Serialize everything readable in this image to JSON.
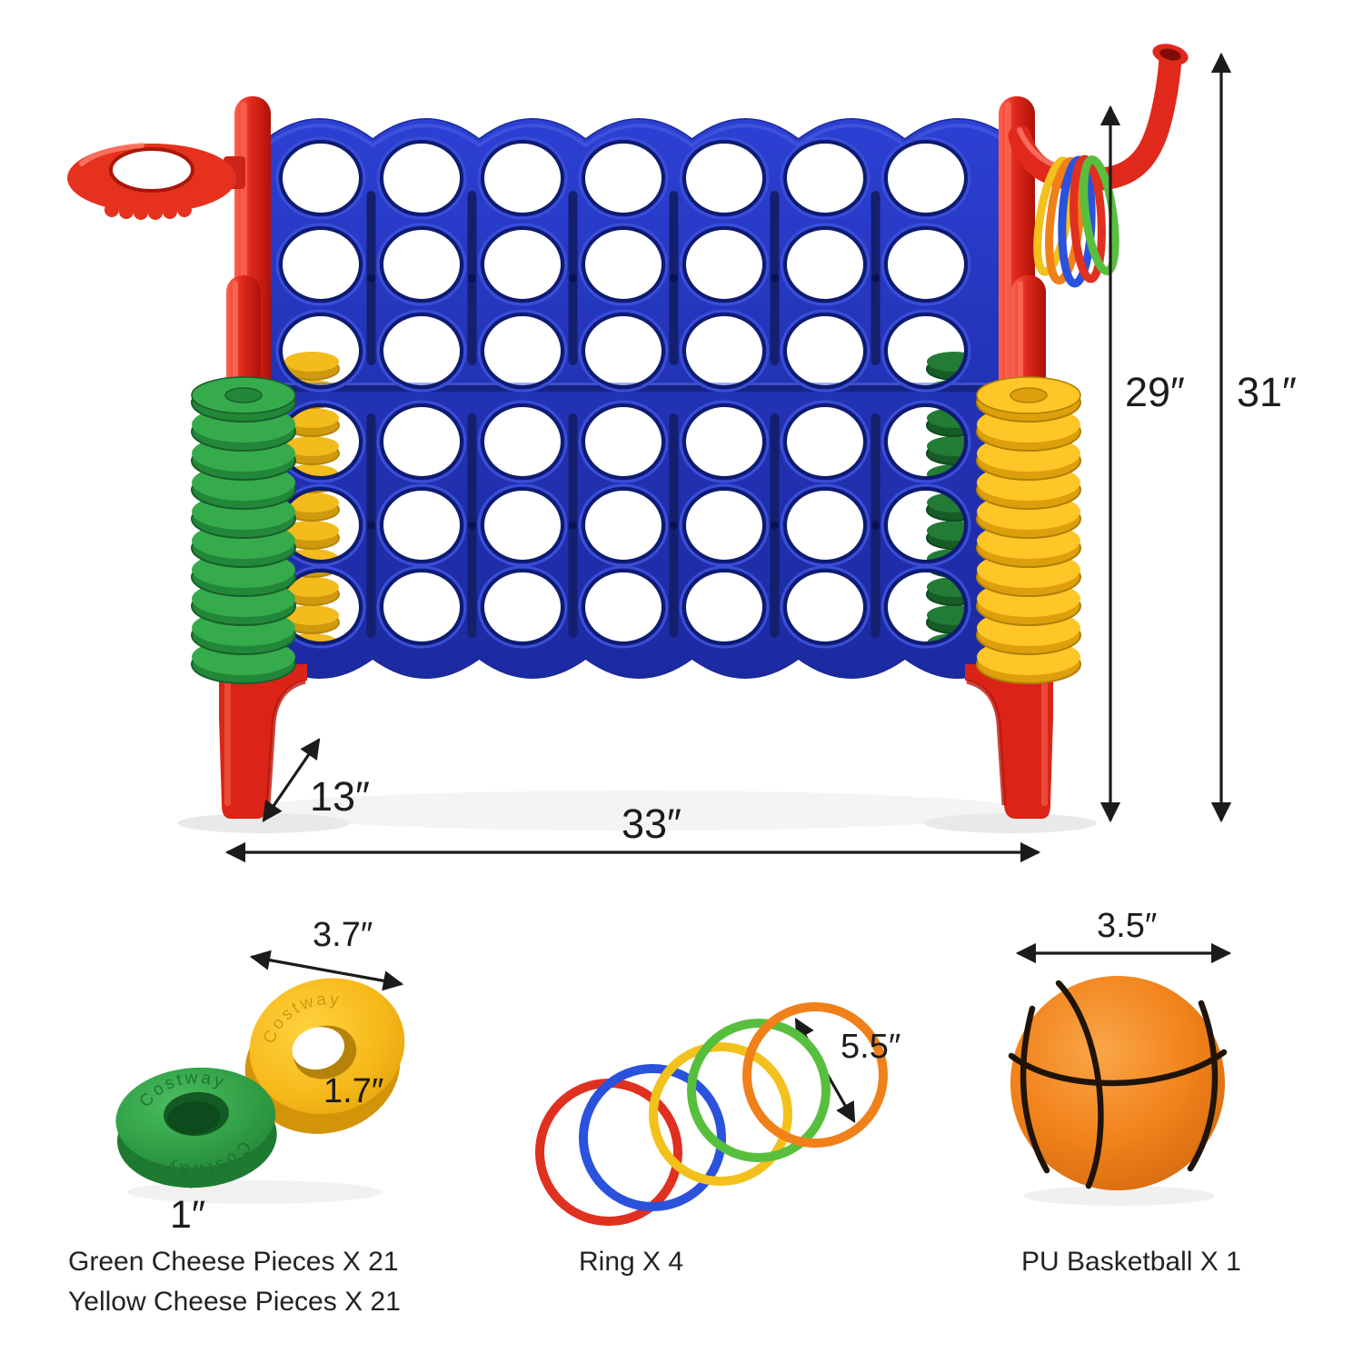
{
  "dimensions": {
    "board_height": "29″",
    "total_height": "31″",
    "base_depth": "13″",
    "total_width": "33″",
    "piece_outer_diameter": "3.7″",
    "piece_hole_diameter": "1.7″",
    "piece_thickness": "1″",
    "ring_diameter": "5.5″",
    "basketball_diameter": "3.5″"
  },
  "captions": {
    "green_pieces": "Green Cheese Pieces X 21",
    "yellow_pieces": "Yellow Cheese Pieces X 21",
    "rings": "Ring X 4",
    "basketball": "PU Basketball X 1"
  },
  "embossed_brand": "Costway",
  "colors": {
    "frame_red": "#e0291c",
    "frame_red_dark": "#b01208",
    "board_blue": "#2336c0",
    "board_blue_dark": "#141f6e",
    "piece_green_top": "#36ab4c",
    "piece_green_side": "#23873a",
    "piece_green_line": "#166028",
    "piece_green_back_top": "#237c36",
    "piece_green_back_side": "#175c27",
    "piece_yellow_top": "#ffc627",
    "piece_yellow_side": "#dda00c",
    "piece_yellow_line": "#b07f06",
    "ring_red": "#e03020",
    "ring_blue": "#2a52dd",
    "ring_yellow": "#f2c11c",
    "ring_green": "#58bf3e",
    "ring_orange": "#f08019",
    "basketball_orange": "#f2831c",
    "dimension_ink": "#1b1b1b"
  }
}
